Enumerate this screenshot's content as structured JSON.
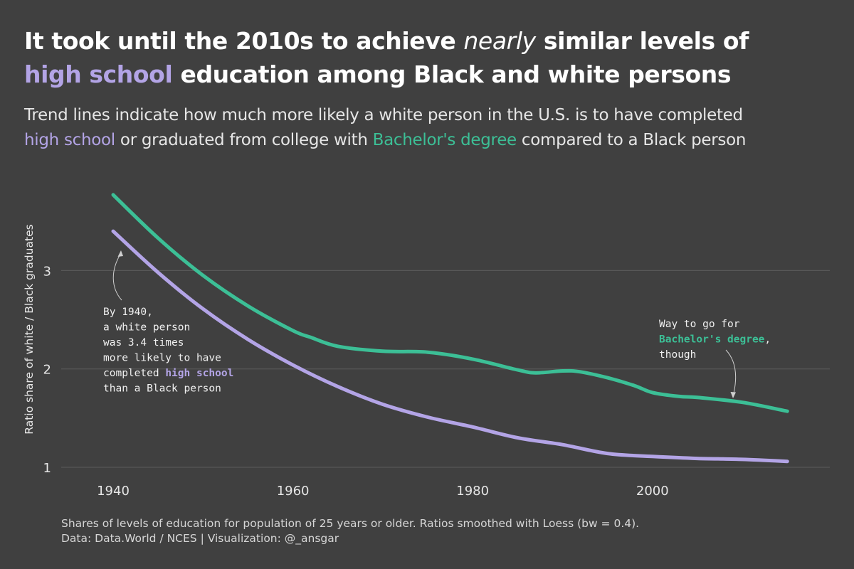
{
  "title": {
    "part1": "It took until the 2010s to achieve ",
    "emph": "nearly",
    "part2": " similar levels of",
    "highlight": "high school",
    "part3": " education among Black and white persons"
  },
  "subtitle": {
    "line1": "Trend lines indicate how much more likely a white person in the U.S. is to have completed",
    "hs": "high school",
    "mid": " or graduated from college with ",
    "ba": "Bachelor's degree",
    "end": " compared to a Black person"
  },
  "caption": {
    "line1": "Shares of levels of education for population of 25 years or older. Ratios smoothed with Loess (bw = 0.4).",
    "line2": "Data: Data.World / NCES | Visualization: @_ansgar"
  },
  "annotations": {
    "left": {
      "l1": "By 1940,",
      "l2": "a white person",
      "l3": "was 3.4 times",
      "l4": "more likely to have",
      "l5a": "completed ",
      "l5b": "high school",
      "l6": "than a Black person"
    },
    "right": {
      "l1": "Way to go for",
      "l2a": "Bachelor's degree",
      "l2b": ",",
      "l3": "though"
    }
  },
  "chart_data": {
    "type": "line",
    "title": "It took until the 2010s to achieve nearly similar levels of high school education among Black and white persons",
    "xlabel": "",
    "ylabel": "Ratio share of white / Black graduates",
    "xlim": [
      1934,
      2020
    ],
    "ylim": [
      0.95,
      3.9
    ],
    "x_ticks": [
      1940,
      1960,
      1980,
      2000
    ],
    "y_ticks": [
      1,
      2,
      3
    ],
    "grid": "horizontal",
    "legend": "none (colored words in subtitle)",
    "colors": {
      "high_school": "#b3a4e6",
      "bachelors": "#3cbf96",
      "background": "#404040",
      "grid": "#5c5c5c"
    },
    "series": [
      {
        "name": "Bachelor's degree",
        "x": [
          1940,
          1945,
          1950,
          1955,
          1960,
          1962,
          1965,
          1970,
          1975,
          1980,
          1985,
          1987,
          1990,
          1992,
          1995,
          1998,
          2000,
          2003,
          2005,
          2010,
          2015
        ],
        "y": [
          3.77,
          3.33,
          2.95,
          2.64,
          2.39,
          2.32,
          2.23,
          2.18,
          2.17,
          2.1,
          1.99,
          1.96,
          1.98,
          1.97,
          1.91,
          1.83,
          1.76,
          1.72,
          1.71,
          1.66,
          1.57
        ]
      },
      {
        "name": "high school",
        "x": [
          1940,
          1945,
          1950,
          1955,
          1960,
          1965,
          1970,
          1975,
          1980,
          1985,
          1990,
          1995,
          2000,
          2005,
          2010,
          2015
        ],
        "y": [
          3.4,
          2.98,
          2.61,
          2.3,
          2.04,
          1.82,
          1.64,
          1.51,
          1.41,
          1.3,
          1.23,
          1.14,
          1.11,
          1.09,
          1.08,
          1.06
        ]
      }
    ]
  }
}
